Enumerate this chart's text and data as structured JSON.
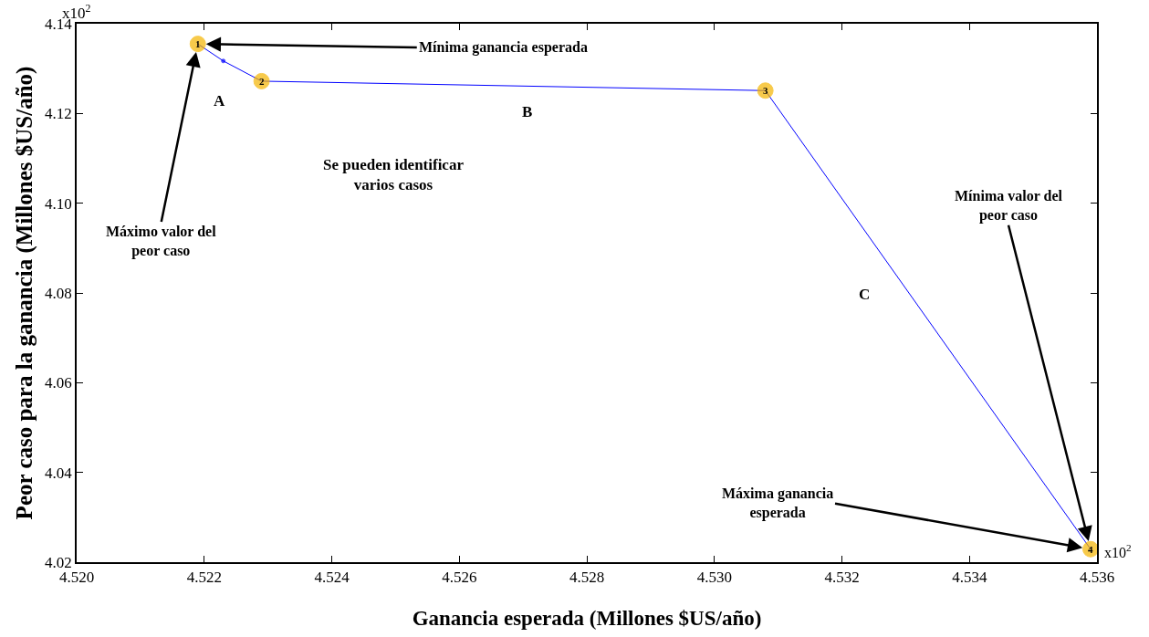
{
  "chart_data": {
    "type": "line",
    "xlabel": "Ganancia esperada (Millones $US/año)",
    "ylabel": "Peor caso para la ganancia (Millones $US/año)",
    "x": [
      4.5219,
      4.5223,
      4.5229,
      4.5308,
      4.5359
    ],
    "series": [
      {
        "color": "#0000ff",
        "colors": [
          "#f5b400",
          "#0000ff",
          "#f5b400",
          "#f5b400",
          "#f5b400"
        ],
        "values": [
          4.1355,
          4.1317,
          4.1272,
          4.1251,
          4.0229
        ]
      }
    ],
    "marker": "circle",
    "line_style": "solid",
    "xlim": [
      4.52,
      4.536
    ],
    "xticks": [
      {
        "value": 4.52,
        "label": "4.520"
      },
      4.522,
      4.524,
      4.526,
      4.528,
      {
        "value": 4.53,
        "label": "4.530"
      },
      4.532,
      4.534,
      4.536
    ],
    "ylim": [
      4.02,
      4.14
    ],
    "yticks": [
      4.02,
      4.04,
      4.06,
      4.08,
      {
        "value": 4.1,
        "label": "4.10"
      },
      4.12,
      4.14
    ],
    "annotations": [
      {
        "text": "Mínima ganancia esperada",
        "x": 4.5219,
        "y": 4.1355
      },
      {
        "text": "Máximo valor del\npeor caso",
        "x": 4.5219,
        "y": 4.1355
      },
      {
        "text": "Mínima valor del\npeor caso",
        "x": 4.5359,
        "y": 4.0229
      },
      {
        "text": "Máxima ganancia\nesperada",
        "x": 4.5359,
        "y": 4.0229
      },
      {
        "text": "1",
        "x": 4.5219,
        "y": 4.1355
      },
      {
        "text": "2",
        "x": 4.5229,
        "y": 4.1272
      },
      {
        "text": "3",
        "x": 4.5308,
        "y": 4.1251
      },
      {
        "text": "4",
        "x": 4.5359,
        "y": 4.0229
      },
      "A",
      "B",
      "C",
      "Se pueden identificar\nvarios casos",
      "x10$^{2}$",
      "x10$^{2}$"
    ]
  }
}
